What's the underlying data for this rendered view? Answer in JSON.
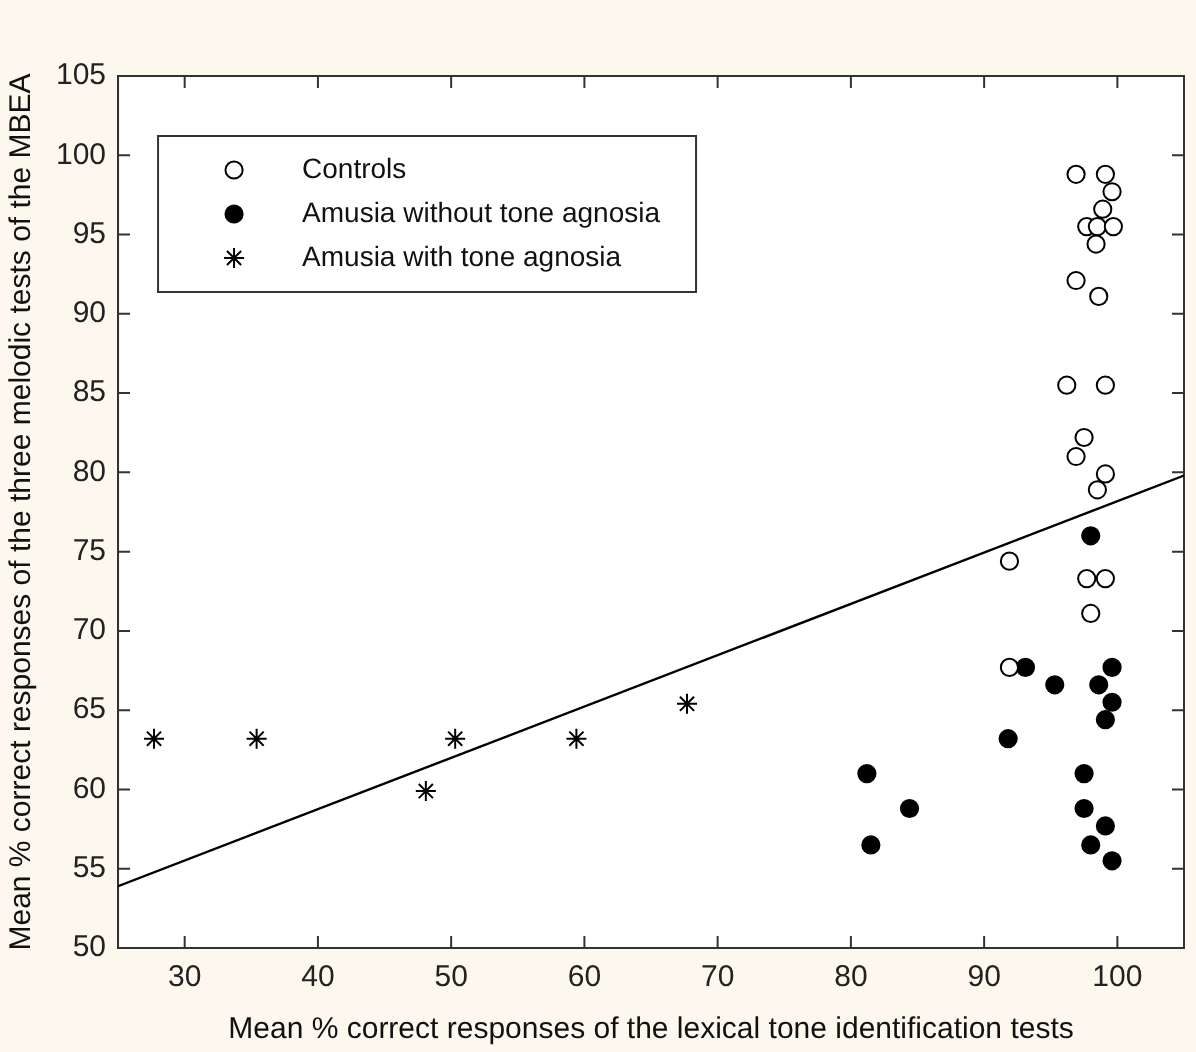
{
  "chart_data": {
    "type": "scatter",
    "xlabel": "Mean % correct responses of the lexical tone identification tests",
    "ylabel": "Mean % correct responses of the three melodic tests of the MBEA",
    "xlim": [
      25,
      105
    ],
    "xticks": [
      30,
      40,
      50,
      60,
      70,
      80,
      90,
      100
    ],
    "ylim": [
      50,
      105
    ],
    "yticks": [
      50,
      55,
      60,
      65,
      70,
      75,
      80,
      85,
      90,
      95,
      100,
      105
    ],
    "legend": "top left",
    "series": [
      {
        "name": "Controls",
        "color": "#ffffff",
        "marker": "circle",
        "x": [
          96.9,
          99.1,
          99.6,
          98.9,
          97.7,
          98.5,
          99.7,
          98.4,
          96.9,
          98.6,
          96.2,
          99.1,
          97.5,
          96.9,
          99.1,
          98.5,
          91.9,
          97.7,
          99.1,
          98.0,
          91.9
        ],
        "values": [
          98.8,
          98.8,
          97.7,
          96.6,
          95.5,
          95.5,
          95.5,
          94.4,
          92.1,
          91.1,
          85.5,
          85.5,
          82.2,
          81.0,
          79.9,
          78.9,
          74.4,
          73.3,
          73.3,
          71.1,
          67.7
        ]
      },
      {
        "name": "Amusia without tone agnosia",
        "color": "#000000",
        "marker": "circle",
        "x": [
          98.0,
          93.1,
          95.3,
          98.6,
          99.6,
          99.6,
          99.1,
          91.8,
          81.2,
          84.4,
          81.5,
          97.5,
          97.5,
          99.1,
          98.0,
          99.6
        ],
        "values": [
          76.0,
          67.7,
          66.6,
          66.6,
          67.7,
          65.5,
          64.4,
          63.2,
          61.0,
          58.8,
          56.5,
          61.0,
          58.8,
          57.7,
          56.5,
          55.5
        ]
      },
      {
        "name": "Amusia with tone agnosia",
        "color": "#000000",
        "marker": "cross",
        "x": [
          27.7,
          35.4,
          48.1,
          50.3,
          59.4,
          67.7
        ],
        "values": [
          63.2,
          63.2,
          59.9,
          63.2,
          63.2,
          65.4
        ]
      },
      {
        "type": "line",
        "color": "#000000",
        "marker": "none",
        "x": [
          25,
          105
        ],
        "values": [
          53.9,
          79.8
        ]
      }
    ]
  }
}
